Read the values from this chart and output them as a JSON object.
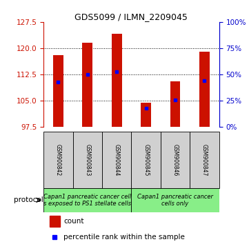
{
  "title": "GDS5099 / ILMN_2209045",
  "samples": [
    "GSM900842",
    "GSM900843",
    "GSM900844",
    "GSM900845",
    "GSM900846",
    "GSM900847"
  ],
  "bar_tops": [
    118.0,
    121.5,
    124.2,
    104.5,
    110.5,
    119.0
  ],
  "percentile_values": [
    110.3,
    112.5,
    113.2,
    102.8,
    105.3,
    110.7
  ],
  "ymin": 97.5,
  "ymax": 127.5,
  "yticks_left": [
    97.5,
    105.0,
    112.5,
    120.0,
    127.5
  ],
  "yticks_right_pct": [
    0,
    25,
    50,
    75,
    100
  ],
  "grid_lines": [
    105.0,
    112.5,
    120.0
  ],
  "bar_color": "#cc1100",
  "percentile_color": "#0000ff",
  "left_axis_color": "#cc1100",
  "right_axis_color": "#0000cc",
  "bar_width": 0.35,
  "protocol_group1_label": "Capan1 pancreatic cancer cell\ns exposed to PS1 stellate cells",
  "protocol_group2_label": "Capan1 pancreatic cancer\ncells only",
  "protocol_group1_samples": 3,
  "protocol_group2_samples": 3,
  "protocol_color": "#88ee88",
  "sample_box_color": "#d0d0d0",
  "protocol_label": "protocol",
  "legend_count_label": "count",
  "legend_percentile_label": "percentile rank within the sample",
  "title_fontsize": 9,
  "tick_fontsize": 7.5,
  "sample_fontsize": 5.5,
  "protocol_fontsize": 6.0,
  "legend_fontsize": 7.5
}
